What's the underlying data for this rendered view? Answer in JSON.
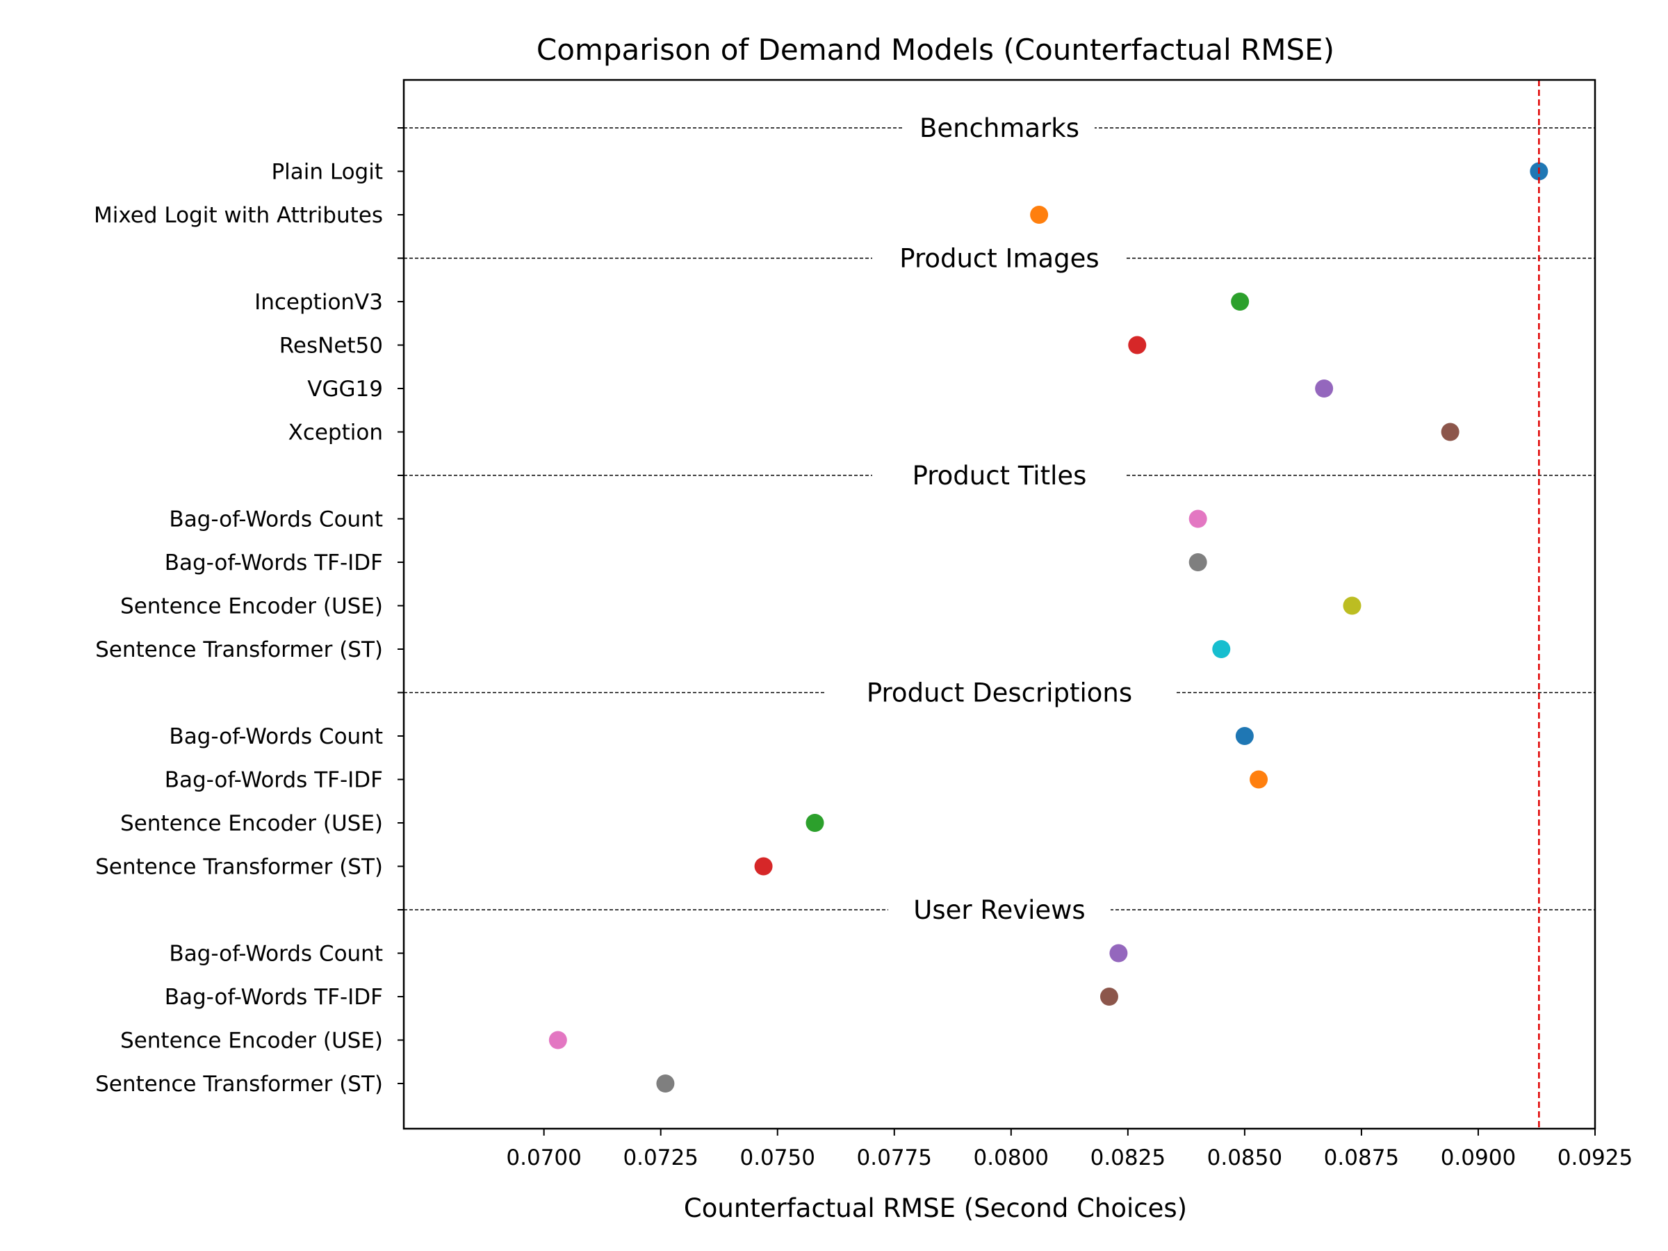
{
  "chart_data": {
    "type": "scatter",
    "title": "Comparison of Demand Models (Counterfactual RMSE)",
    "xlabel": "Counterfactual RMSE (Second Choices)",
    "ylabel": "",
    "xlim": [
      0.067,
      0.0925
    ],
    "xticks": [
      "0.0700",
      "0.0725",
      "0.0750",
      "0.0775",
      "0.0800",
      "0.0825",
      "0.0850",
      "0.0875",
      "0.0900",
      "0.0925"
    ],
    "grid": false,
    "reference_line": {
      "x": 0.0913,
      "color": "#e00000",
      "style": "dashed"
    },
    "sections": [
      {
        "label": "Benchmarks",
        "rows": [
          {
            "label": "Plain Logit",
            "value": 0.0913,
            "color": "#1f77b4"
          },
          {
            "label": "Mixed Logit with Attributes",
            "value": 0.0806,
            "color": "#ff7f0e"
          }
        ]
      },
      {
        "label": "Product Images",
        "rows": [
          {
            "label": "InceptionV3",
            "value": 0.0849,
            "color": "#2ca02c"
          },
          {
            "label": "ResNet50",
            "value": 0.0827,
            "color": "#d62728"
          },
          {
            "label": "VGG19",
            "value": 0.0867,
            "color": "#9467bd"
          },
          {
            "label": "Xception",
            "value": 0.0894,
            "color": "#8c564b"
          }
        ]
      },
      {
        "label": "Product Titles",
        "rows": [
          {
            "label": "Bag-of-Words Count",
            "value": 0.084,
            "color": "#e377c2"
          },
          {
            "label": "Bag-of-Words TF-IDF",
            "value": 0.084,
            "color": "#7f7f7f"
          },
          {
            "label": "Sentence Encoder (USE)",
            "value": 0.0873,
            "color": "#bcbd22"
          },
          {
            "label": "Sentence Transformer (ST)",
            "value": 0.0845,
            "color": "#17becf"
          }
        ]
      },
      {
        "label": "Product Descriptions",
        "rows": [
          {
            "label": "Bag-of-Words Count",
            "value": 0.085,
            "color": "#1f77b4"
          },
          {
            "label": "Bag-of-Words TF-IDF",
            "value": 0.0853,
            "color": "#ff7f0e"
          },
          {
            "label": "Sentence Encoder (USE)",
            "value": 0.0758,
            "color": "#2ca02c"
          },
          {
            "label": "Sentence Transformer (ST)",
            "value": 0.0747,
            "color": "#d62728"
          }
        ]
      },
      {
        "label": "User Reviews",
        "rows": [
          {
            "label": "Bag-of-Words Count",
            "value": 0.0823,
            "color": "#9467bd"
          },
          {
            "label": "Bag-of-Words TF-IDF",
            "value": 0.0821,
            "color": "#8c564b"
          },
          {
            "label": "Sentence Encoder (USE)",
            "value": 0.0703,
            "color": "#e377c2"
          },
          {
            "label": "Sentence Transformer (ST)",
            "value": 0.0726,
            "color": "#7f7f7f"
          }
        ]
      }
    ]
  }
}
